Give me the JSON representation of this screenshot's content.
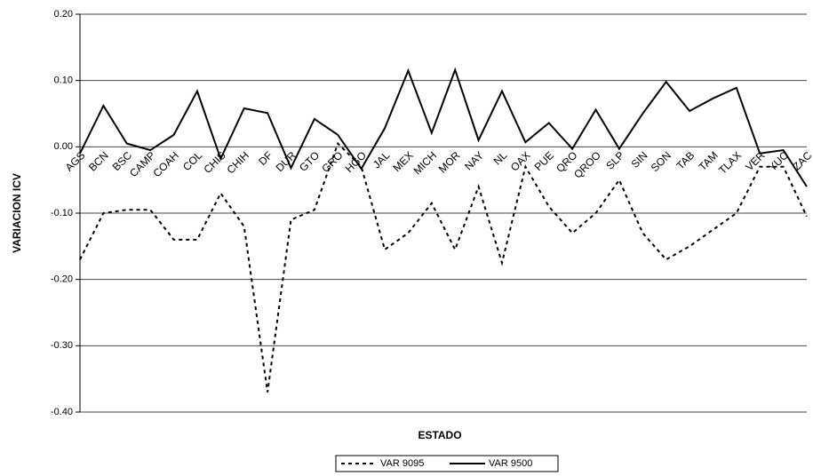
{
  "chart_data": {
    "type": "line",
    "x_label": "ESTADO",
    "y_label": "VARIACION ICV",
    "categories": [
      "AGS",
      "BCN",
      "BSC",
      "CAMP",
      "COAH",
      "COL",
      "CHIS",
      "CHIH",
      "DF",
      "DUR",
      "GTO",
      "GRO",
      "HGO",
      "JAL",
      "MEX",
      "MICH",
      "MOR",
      "NAY",
      "NL",
      "OAX",
      "PUE",
      "QRO",
      "QROO",
      "SLP",
      "SIN",
      "SON",
      "TAB",
      "TAM",
      "TLAX",
      "VER",
      "YUC",
      "ZAC"
    ],
    "series": [
      {
        "name": "VAR 9095",
        "color": "#000000",
        "dash": true,
        "values": [
          -0.17,
          -0.1,
          -0.095,
          -0.095,
          -0.14,
          -0.14,
          -0.07,
          -0.12,
          -0.37,
          -0.11,
          -0.095,
          0.005,
          -0.03,
          -0.155,
          -0.13,
          -0.085,
          -0.155,
          -0.06,
          -0.175,
          -0.03,
          -0.09,
          -0.13,
          -0.1,
          -0.05,
          -0.13,
          -0.17,
          -0.15,
          -0.125,
          -0.1,
          -0.03,
          -0.03,
          -0.105
        ]
      },
      {
        "name": "VAR 9500",
        "color": "#000000",
        "dash": false,
        "values": [
          -0.01,
          0.062,
          0.005,
          -0.005,
          0.018,
          0.084,
          -0.018,
          0.058,
          0.051,
          -0.032,
          0.042,
          0.018,
          -0.033,
          0.028,
          0.115,
          0.021,
          0.116,
          0.01,
          0.084,
          0.007,
          0.036,
          -0.003,
          0.056,
          -0.003,
          0.05,
          0.098,
          0.054,
          0.073,
          0.089,
          -0.01,
          -0.005,
          -0.06
        ]
      }
    ],
    "ylim": [
      -0.4,
      0.2
    ],
    "yticks": [
      {
        "value": 0.2,
        "label": "0.20"
      },
      {
        "value": 0.1,
        "label": "0.10"
      },
      {
        "value": 0,
        "label": "0.00"
      },
      {
        "value": -0.1,
        "label": "-0.10"
      },
      {
        "value": -0.2,
        "label": "-0.20"
      },
      {
        "value": -0.3,
        "label": "-0.30"
      },
      {
        "value": -0.4,
        "label": "-0.40"
      }
    ],
    "grid": true,
    "legend": "bottom"
  }
}
